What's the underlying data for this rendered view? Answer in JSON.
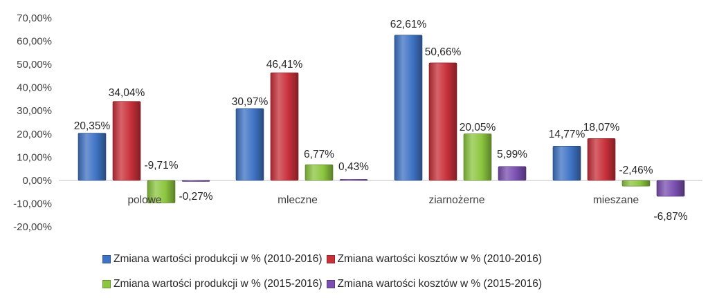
{
  "chart_data": {
    "type": "bar",
    "title": "",
    "xlabel": "",
    "ylabel": "",
    "ylim": [
      -20,
      70
    ],
    "y_ticks": [
      "70,00%",
      "60,00%",
      "50,00%",
      "40,00%",
      "30,00%",
      "20,00%",
      "10,00%",
      "0,00%",
      "-10,00%",
      "-20,00%"
    ],
    "y_tick_values": [
      70,
      60,
      50,
      40,
      30,
      20,
      10,
      0,
      -10,
      -20
    ],
    "grid": false,
    "legend_position": "bottom",
    "categories": [
      "polowe",
      "mleczne",
      "ziarnożerne",
      "mieszane"
    ],
    "series": [
      {
        "name": "Zmiana wartości produkcji  w % (2010-2016)",
        "color": "#3f73c4",
        "values": [
          20.35,
          30.97,
          62.61,
          14.77
        ],
        "labels": [
          "20,35%",
          "30,97%",
          "62,61%",
          "14,77%"
        ]
      },
      {
        "name": "Zmiana wartości kosztów  w % (2010-2016)",
        "color": "#c8303a",
        "values": [
          34.04,
          46.41,
          50.66,
          18.07
        ],
        "labels": [
          "34,04%",
          "46,41%",
          "50,66%",
          "18,07%"
        ]
      },
      {
        "name": "Zmiana wartości produkcji  w % (2015-2016)",
        "color": "#8cc63f",
        "values": [
          -9.71,
          6.77,
          20.05,
          -2.46
        ],
        "labels": [
          "-9,71%",
          "6,77%",
          "20,05%",
          "-2,46%"
        ]
      },
      {
        "name": "Zmiana wartości kosztów  w % (2015-2016)",
        "color": "#7a4fb0",
        "values": [
          -0.27,
          0.43,
          5.99,
          -6.87
        ],
        "labels": [
          "-0,27%",
          "0,43%",
          "5,99%",
          "-6,87%"
        ]
      }
    ]
  }
}
